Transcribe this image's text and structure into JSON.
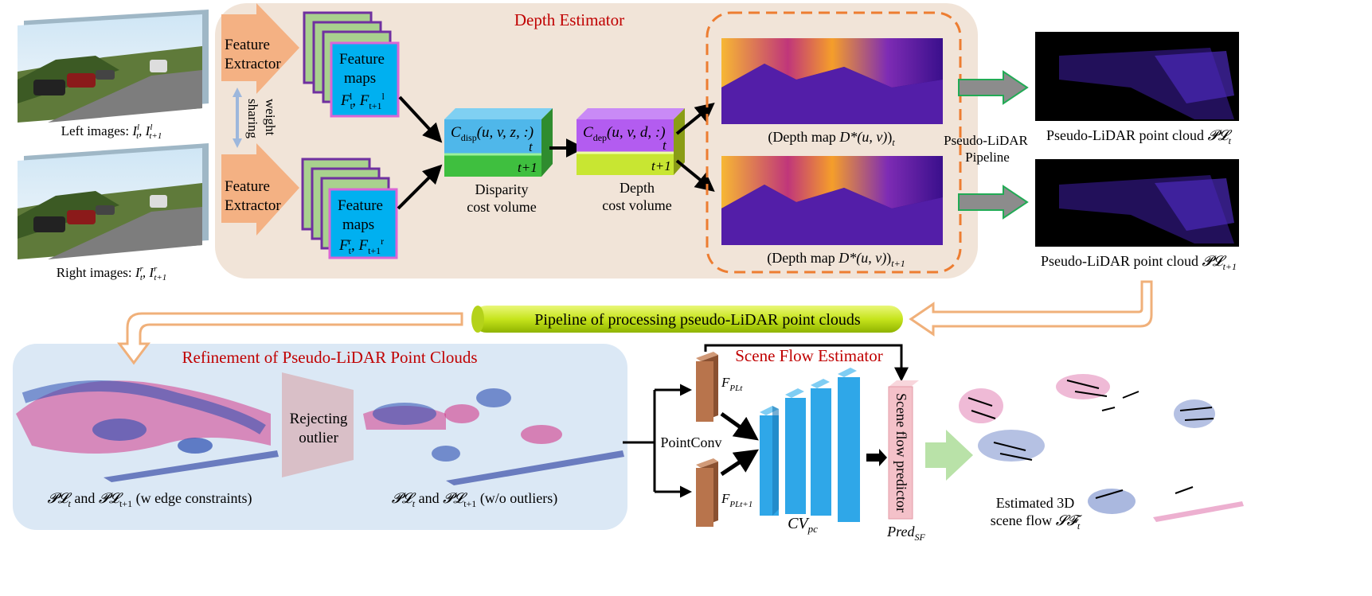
{
  "colors": {
    "depth_panel": "#f1e4d8",
    "refine_panel": "#dbe8f5",
    "title_red": "#c00000",
    "feature_orange": "#f4b183",
    "feature_map_blue": "#00b0f0",
    "feature_map_border": "#d966d6",
    "stack_green": "#a9d18e",
    "stack_purple": "#7030a0",
    "disp_blue": "#4fb7ea",
    "disp_green": "#3fbf3f",
    "dep_purple": "#b35cf0",
    "dep_yellow": "#c8e632",
    "dash_orange": "#ed7d31",
    "pipeline_green": "#c6e41c",
    "arrow_grey": "#8c8c8c",
    "arrow_green": "#22aa55",
    "outlier_pink": "#d9bfc7",
    "brown_block": "#b8744c",
    "cv_blue": "#2fa7e8",
    "pred_pink": "#f4c1c9",
    "big_arrow_green": "#b9e2a8"
  },
  "depth_estimator": {
    "title": "Depth Estimator",
    "feature_extractor_top": [
      "Feature",
      "Extractor"
    ],
    "feature_extractor_bottom": [
      "Feature",
      "Extractor"
    ],
    "weight_sharing": [
      "weight",
      "sharing"
    ],
    "feature_maps_top": {
      "line1": "Feature",
      "line2": "maps",
      "line3": "F",
      "sub1": "t",
      "sup1": "l",
      "mid": ", F",
      "sub2": "t+1",
      "sup2": "l"
    },
    "feature_maps_bottom": {
      "line1": "Feature",
      "line2": "maps",
      "line3": "F",
      "sub1": "t",
      "sup1": "r",
      "mid": ", F",
      "sub2": "t+1",
      "sup2": "r"
    },
    "disp_volume": {
      "symbol": "C",
      "sub": "disp",
      "args": "(u, v, z, :)",
      "t": "t",
      "t1": "t+1",
      "caption": [
        "Disparity",
        "cost volume"
      ]
    },
    "dep_volume": {
      "symbol": "C",
      "sub": "dep",
      "args": "(u, v, d, :)",
      "t": "t",
      "t1": "t+1",
      "caption": [
        "Depth",
        "cost volume"
      ]
    },
    "depth_map_t": {
      "pre": "(Depth map ",
      "sym": "D*(u, v)",
      "post": ")",
      "sub": "t"
    },
    "depth_map_t1": {
      "pre": "(Depth map ",
      "sym": "D*(u, v)",
      "post": ")",
      "sub": "t+1"
    }
  },
  "images": {
    "left": {
      "pre": "Left images: ",
      "a": "I",
      "a_sup": "l",
      "a_sub": "t",
      "b": ", I",
      "b_sup": "l",
      "b_sub": "t+1"
    },
    "right": {
      "pre": "Right images: ",
      "a": "I",
      "a_sup": "r",
      "a_sub": "t",
      "b": ", I",
      "b_sup": "r",
      "b_sub": "t+1"
    }
  },
  "pseudo_lidar": {
    "pipeline_label": [
      "Pseudo-LiDAR",
      "Pipeline"
    ],
    "cloud_t": {
      "pre": "Pseudo-LiDAR point cloud ",
      "sym": "𝓟𝓛",
      "sub": "t"
    },
    "cloud_t1": {
      "pre": "Pseudo-LiDAR point cloud ",
      "sym": "𝓟𝓛",
      "sub": "t+1"
    }
  },
  "pipeline_banner": "Pipeline of processing pseudo-LiDAR point clouds",
  "refinement": {
    "title": "Refinement of Pseudo-LiDAR Point Clouds",
    "rejecting": [
      "Rejecting",
      "outlier"
    ],
    "caption_left": {
      "s1": "𝓟𝓛",
      "sub1": "t",
      "and": " and ",
      "s2": "𝓟𝓛",
      "sub2": "t+1",
      "tail": " (w edge constraints)"
    },
    "caption_right": {
      "s1": "𝓟𝓛",
      "sub1": "t",
      "and": " and ",
      "s2": "𝓟𝓛",
      "sub2": "t+1",
      "tail": " (w/o outliers)"
    }
  },
  "scene_flow": {
    "title": "Scene Flow Estimator",
    "pointconv": "PointConv",
    "f_top": {
      "sym": "F",
      "sub": "PLt"
    },
    "f_bottom": {
      "sym": "F",
      "sub": "PLt+1"
    },
    "cv": {
      "sym": "CV",
      "sub": "pc"
    },
    "predictor": "Scene flow predictor",
    "pred": {
      "sym": "Pred",
      "sub": "SF"
    },
    "estimated": [
      "Estimated 3D",
      "scene flow "
    ],
    "estimated_sym": "𝓢𝓕",
    "estimated_sub": "t"
  }
}
